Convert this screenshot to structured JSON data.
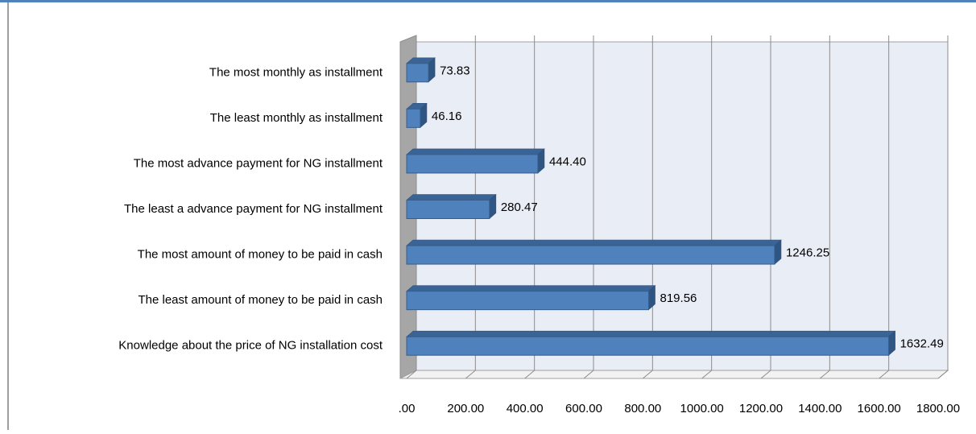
{
  "chart_data": {
    "type": "bar3d-horizontal",
    "categories": [
      "The most  monthly as installment",
      "The least  monthly as installment",
      "The most advance payment for NG installment",
      "The least a advance payment for NG installment",
      "The most amount of money to be paid in cash",
      "The least amount of money to be paid in cash",
      "Knowledge about the price of NG installation cost"
    ],
    "values": [
      73.83,
      46.16,
      444.4,
      280.47,
      1246.25,
      819.56,
      1632.49
    ],
    "value_labels": [
      "73.83",
      "46.16",
      "444.40",
      "280.47",
      "1246.25",
      "819.56",
      "1632.49"
    ],
    "color": "#4f81bd",
    "xlim": [
      0,
      1800
    ],
    "xticks": [
      {
        "value": 0,
        "label": ".00"
      },
      {
        "value": 200,
        "label": "200.00"
      },
      {
        "value": 400,
        "label": "400.00"
      },
      {
        "value": 600,
        "label": "600.00"
      },
      {
        "value": 800,
        "label": "800.00"
      },
      {
        "value": 1000,
        "label": "1000.00"
      },
      {
        "value": 1200,
        "label": "1200.00"
      },
      {
        "value": 1400,
        "label": "1400.00"
      },
      {
        "value": 1600,
        "label": "1600.00"
      },
      {
        "value": 1800,
        "label": "1800.00"
      }
    ],
    "grid": true
  }
}
